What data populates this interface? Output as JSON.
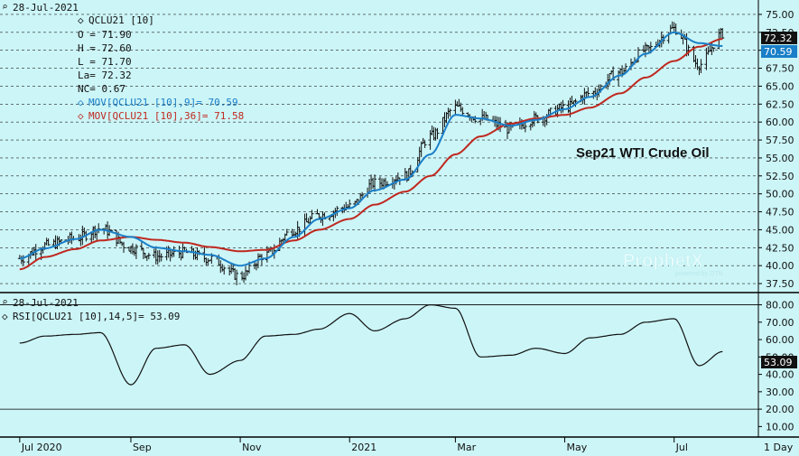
{
  "colors": {
    "background": "#ccf5f7",
    "bars": "#111111",
    "ma_fast": "#1a7fc8",
    "ma_slow": "#c0281f",
    "last_badge": "#111111",
    "ma_fast_badge": "#1a7fc8",
    "grid": "#222222"
  },
  "info": {
    "date": "28-Jul-2021",
    "symbol": "QCLU21 [10]",
    "open": "O = 71.90",
    "high": "H = 72.60",
    "low": "L = 71.70",
    "last": "La= 72.32",
    "net_change": "NC= 0.67",
    "ma_fast_label": "MOV[QCLU21 [10],9]= 70.59",
    "ma_slow_label": "MOV[QCLU21 [10],36]= 71.58"
  },
  "rsi_info": {
    "date": "28-Jul-2021",
    "label": "RSI[QCLU21 [10],14,5]= 53.09"
  },
  "badges": {
    "last": "72.32",
    "ma_fast": "70.59",
    "rsi": "53.09"
  },
  "watermark": {
    "name": "ProphetX",
    "sub": "powered by DTN"
  },
  "x_axis_labels": [
    "Jul 2020",
    "Sep",
    "Nov",
    "2021",
    "Mar",
    "May",
    "Jul"
  ],
  "period_label": "1 Day",
  "chart_data": [
    {
      "type": "ohlc",
      "title": "Sep21 WTI Crude Oil",
      "y_ticks": [
        "75.00",
        "72.50",
        "70.00",
        "67.50",
        "65.00",
        "62.50",
        "60.00",
        "57.50",
        "55.00",
        "52.50",
        "50.00",
        "47.50",
        "45.00",
        "42.50",
        "40.00",
        "37.50"
      ],
      "ylim": [
        36.5,
        76.5
      ],
      "grid": "dashed horizontal",
      "x": [
        "2020-07-01",
        "2020-07-15",
        "2020-08-01",
        "2020-08-15",
        "2020-09-01",
        "2020-09-15",
        "2020-10-01",
        "2020-10-15",
        "2020-11-01",
        "2020-11-15",
        "2020-12-01",
        "2020-12-15",
        "2021-01-01",
        "2021-01-15",
        "2021-02-01",
        "2021-02-15",
        "2021-03-01",
        "2021-03-15",
        "2021-04-01",
        "2021-04-15",
        "2021-05-01",
        "2021-05-15",
        "2021-06-01",
        "2021-06-15",
        "2021-07-01",
        "2021-07-15",
        "2021-07-28"
      ],
      "series": [
        {
          "name": "QCLU21 [10]",
          "values": [
            41.0,
            42.8,
            43.8,
            45.2,
            42.5,
            41.3,
            41.8,
            41.0,
            38.5,
            41.5,
            45.0,
            47.0,
            48.2,
            51.5,
            52.5,
            58.0,
            62.0,
            60.5,
            59.0,
            60.5,
            62.0,
            64.0,
            67.0,
            70.0,
            73.0,
            68.0,
            72.32
          ]
        },
        {
          "name": "MOV[QCLU21 [10],9]",
          "values": [
            41.0,
            42.4,
            43.7,
            45.0,
            44.0,
            42.5,
            42.0,
            41.5,
            40.0,
            41.0,
            44.0,
            46.5,
            48.0,
            50.5,
            52.0,
            55.5,
            61.0,
            60.5,
            59.5,
            60.3,
            61.8,
            63.5,
            66.5,
            69.5,
            72.5,
            71.0,
            70.59
          ]
        },
        {
          "name": "MOV[QCLU21 [10],36]",
          "values": [
            39.5,
            41.2,
            42.3,
            43.5,
            44.0,
            43.6,
            43.2,
            42.6,
            42.0,
            42.2,
            43.5,
            45.0,
            46.5,
            48.5,
            50.3,
            52.5,
            55.5,
            58.0,
            59.8,
            60.5,
            61.0,
            62.0,
            64.0,
            66.2,
            68.5,
            70.5,
            71.58
          ]
        }
      ]
    },
    {
      "type": "line",
      "y_ticks": [
        "80.00",
        "70.00",
        "60.00",
        "50.00",
        "40.00",
        "30.00",
        "20.00",
        "10.00"
      ],
      "ylim": [
        5,
        86
      ],
      "reference_lines": [
        80,
        20
      ],
      "x": [
        "2020-07-01",
        "2020-07-15",
        "2020-08-01",
        "2020-08-15",
        "2020-09-01",
        "2020-09-15",
        "2020-10-01",
        "2020-10-15",
        "2020-11-01",
        "2020-11-15",
        "2020-12-01",
        "2020-12-15",
        "2021-01-01",
        "2021-01-15",
        "2021-02-01",
        "2021-02-15",
        "2021-03-01",
        "2021-03-15",
        "2021-04-01",
        "2021-04-15",
        "2021-05-01",
        "2021-05-15",
        "2021-06-01",
        "2021-06-15",
        "2021-07-01",
        "2021-07-15",
        "2021-07-28"
      ],
      "series": [
        {
          "name": "RSI[QCLU21 [10],14,5]",
          "values": [
            58,
            62,
            63,
            64,
            34,
            55,
            57,
            40,
            48,
            62,
            63,
            66,
            75,
            65,
            72,
            80,
            78,
            50,
            51,
            55,
            52,
            61,
            63,
            70,
            72,
            45,
            53.09
          ]
        }
      ]
    }
  ]
}
